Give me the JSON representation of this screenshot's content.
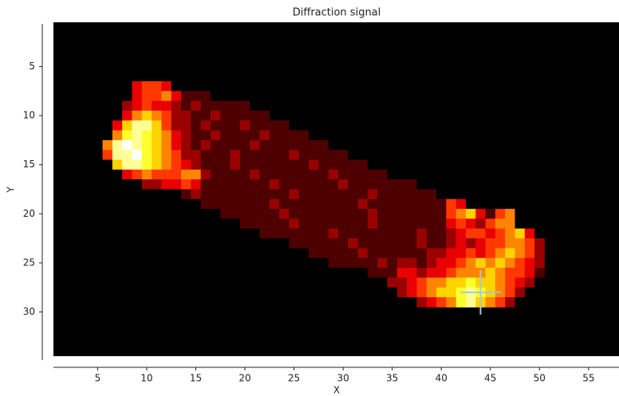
{
  "chart_data": {
    "type": "heatmap",
    "title": "Diffraction signal",
    "x_label": "X",
    "y_label": "Y",
    "colormap": "hot",
    "vmin": 0,
    "vmax": 9,
    "background": "#000000",
    "xlim": [
      0.5,
      58.1
    ],
    "ylim": [
      0.5,
      34.5
    ],
    "xticks": [
      5,
      10,
      15,
      20,
      25,
      30,
      35,
      40,
      45,
      50,
      55
    ],
    "yticks": [
      5,
      10,
      15,
      20,
      25,
      30
    ],
    "marker": {
      "x": 44,
      "y": 28,
      "color": "#9ecae1"
    },
    "x": [
      6,
      7,
      8,
      9,
      10,
      11,
      12,
      13,
      14,
      15,
      16,
      17,
      18,
      19,
      20,
      21,
      22,
      23,
      24,
      25,
      26,
      27,
      28,
      29,
      30,
      31,
      32,
      33,
      34,
      35,
      36,
      37,
      38,
      39,
      40,
      41,
      42,
      43,
      44,
      45,
      46,
      47,
      48,
      49,
      50
    ],
    "y": [
      7,
      8,
      9,
      10,
      11,
      12,
      13,
      14,
      15,
      16,
      17,
      18,
      19,
      20,
      21,
      22,
      23,
      24,
      25,
      26,
      27,
      28,
      29
    ],
    "z": [
      [
        0,
        0,
        0,
        3,
        4,
        4,
        3,
        0,
        0,
        0,
        0,
        0,
        0,
        0,
        0,
        0,
        0,
        0,
        0,
        0,
        0,
        0,
        0,
        0,
        0,
        0,
        0,
        0,
        0,
        0,
        0,
        0,
        0,
        0,
        0,
        0,
        0,
        0,
        0,
        0,
        0,
        0,
        0,
        0,
        0
      ],
      [
        0,
        0,
        0,
        3,
        4,
        4,
        5,
        3,
        1,
        1,
        1,
        0,
        0,
        0,
        0,
        0,
        0,
        0,
        0,
        0,
        0,
        0,
        0,
        0,
        0,
        0,
        0,
        0,
        0,
        0,
        0,
        0,
        0,
        0,
        0,
        0,
        0,
        0,
        0,
        0,
        0,
        0,
        0,
        0,
        0
      ],
      [
        0,
        0,
        2,
        3,
        4,
        3,
        3,
        2,
        1,
        2,
        1,
        1,
        1,
        1,
        1,
        0,
        0,
        0,
        0,
        0,
        0,
        0,
        0,
        0,
        0,
        0,
        0,
        0,
        0,
        0,
        0,
        0,
        0,
        0,
        0,
        0,
        0,
        0,
        0,
        0,
        0,
        0,
        0,
        0,
        0
      ],
      [
        0,
        0,
        3,
        5,
        6,
        5,
        4,
        2,
        2,
        1,
        1,
        2,
        1,
        1,
        1,
        1,
        1,
        0,
        0,
        0,
        0,
        0,
        0,
        0,
        0,
        0,
        0,
        0,
        0,
        0,
        0,
        0,
        0,
        0,
        0,
        0,
        0,
        0,
        0,
        0,
        0,
        0,
        0,
        0,
        0
      ],
      [
        0,
        3,
        6,
        8,
        8,
        6,
        4,
        2,
        2,
        1,
        2,
        1,
        1,
        1,
        2,
        1,
        1,
        1,
        1,
        0,
        0,
        0,
        0,
        0,
        0,
        0,
        0,
        0,
        0,
        0,
        0,
        0,
        0,
        0,
        0,
        0,
        0,
        0,
        0,
        0,
        0,
        0,
        0,
        0,
        0
      ],
      [
        0,
        5,
        7,
        8,
        7,
        6,
        5,
        3,
        2,
        1,
        1,
        2,
        1,
        1,
        1,
        1,
        2,
        1,
        1,
        1,
        1,
        0,
        0,
        0,
        0,
        0,
        0,
        0,
        0,
        0,
        0,
        0,
        0,
        0,
        0,
        0,
        0,
        0,
        0,
        0,
        0,
        0,
        0,
        0,
        0
      ],
      [
        5,
        8,
        9,
        8,
        7,
        6,
        5,
        3,
        2,
        1,
        2,
        1,
        1,
        1,
        1,
        2,
        1,
        1,
        1,
        1,
        1,
        1,
        1,
        0,
        0,
        0,
        0,
        0,
        0,
        0,
        0,
        0,
        0,
        0,
        0,
        0,
        0,
        0,
        0,
        0,
        0,
        0,
        0,
        0,
        0
      ],
      [
        4,
        8,
        8,
        9,
        7,
        6,
        5,
        4,
        2,
        2,
        1,
        1,
        1,
        2,
        1,
        1,
        1,
        1,
        1,
        2,
        1,
        1,
        1,
        1,
        1,
        0,
        0,
        0,
        0,
        0,
        0,
        0,
        0,
        0,
        0,
        0,
        0,
        0,
        0,
        0,
        0,
        0,
        0,
        0,
        0
      ],
      [
        0,
        6,
        8,
        8,
        7,
        6,
        5,
        4,
        3,
        2,
        1,
        1,
        1,
        2,
        1,
        1,
        1,
        1,
        1,
        1,
        1,
        2,
        1,
        1,
        1,
        1,
        1,
        0,
        0,
        0,
        0,
        0,
        0,
        0,
        0,
        0,
        0,
        0,
        0,
        0,
        0,
        0,
        0,
        0,
        0
      ],
      [
        0,
        0,
        3,
        4,
        5,
        4,
        4,
        4,
        5,
        5,
        2,
        1,
        1,
        1,
        1,
        2,
        1,
        1,
        1,
        1,
        1,
        1,
        1,
        2,
        1,
        1,
        1,
        1,
        1,
        0,
        0,
        0,
        0,
        0,
        0,
        0,
        0,
        0,
        0,
        0,
        0,
        0,
        0,
        0,
        0
      ],
      [
        0,
        0,
        0,
        0,
        2,
        2,
        3,
        3,
        4,
        3,
        1,
        1,
        1,
        1,
        1,
        1,
        1,
        2,
        1,
        1,
        1,
        1,
        1,
        1,
        2,
        1,
        1,
        1,
        1,
        1,
        1,
        1,
        0,
        0,
        0,
        0,
        0,
        0,
        0,
        0,
        0,
        0,
        0,
        0,
        0
      ],
      [
        0,
        0,
        0,
        0,
        0,
        0,
        0,
        0,
        1,
        2,
        1,
        1,
        1,
        1,
        1,
        1,
        1,
        1,
        1,
        2,
        1,
        1,
        1,
        1,
        1,
        1,
        1,
        2,
        1,
        1,
        1,
        1,
        1,
        1,
        0,
        0,
        0,
        0,
        0,
        0,
        0,
        0,
        0,
        0,
        0
      ],
      [
        0,
        0,
        0,
        0,
        0,
        0,
        0,
        0,
        0,
        0,
        1,
        1,
        1,
        1,
        1,
        1,
        1,
        2,
        1,
        1,
        1,
        1,
        1,
        1,
        1,
        1,
        2,
        1,
        1,
        1,
        1,
        1,
        1,
        1,
        1,
        4,
        3,
        0,
        0,
        0,
        0,
        0,
        0,
        0,
        0
      ],
      [
        0,
        0,
        0,
        0,
        0,
        0,
        0,
        0,
        0,
        0,
        0,
        0,
        1,
        1,
        1,
        1,
        1,
        1,
        2,
        1,
        1,
        1,
        1,
        1,
        1,
        1,
        1,
        2,
        1,
        1,
        1,
        1,
        1,
        1,
        1,
        4,
        5,
        6,
        3,
        1,
        4,
        5,
        0,
        0,
        0
      ],
      [
        0,
        0,
        0,
        0,
        0,
        0,
        0,
        0,
        0,
        0,
        0,
        0,
        0,
        0,
        1,
        1,
        1,
        1,
        1,
        2,
        1,
        1,
        1,
        1,
        1,
        1,
        1,
        2,
        1,
        1,
        1,
        1,
        1,
        1,
        1,
        3,
        4,
        3,
        2,
        4,
        5,
        5,
        0,
        0,
        0
      ],
      [
        0,
        0,
        0,
        0,
        0,
        0,
        0,
        0,
        0,
        0,
        0,
        0,
        0,
        0,
        0,
        0,
        1,
        1,
        1,
        1,
        1,
        1,
        1,
        2,
        1,
        1,
        1,
        1,
        1,
        1,
        1,
        1,
        2,
        1,
        1,
        2,
        3,
        4,
        4,
        3,
        4,
        5,
        6,
        3,
        0
      ],
      [
        0,
        0,
        0,
        0,
        0,
        0,
        0,
        0,
        0,
        0,
        0,
        0,
        0,
        0,
        0,
        0,
        0,
        0,
        0,
        1,
        1,
        1,
        1,
        1,
        1,
        2,
        1,
        1,
        1,
        1,
        1,
        1,
        2,
        1,
        1,
        2,
        3,
        2,
        3,
        4,
        4,
        5,
        5,
        4,
        2
      ],
      [
        0,
        0,
        0,
        0,
        0,
        0,
        0,
        0,
        0,
        0,
        0,
        0,
        0,
        0,
        0,
        0,
        0,
        0,
        0,
        0,
        0,
        1,
        1,
        1,
        1,
        1,
        2,
        1,
        1,
        1,
        1,
        1,
        1,
        2,
        2,
        3,
        3,
        4,
        3,
        4,
        5,
        6,
        5,
        4,
        2
      ],
      [
        0,
        0,
        0,
        0,
        0,
        0,
        0,
        0,
        0,
        0,
        0,
        0,
        0,
        0,
        0,
        0,
        0,
        0,
        0,
        0,
        0,
        0,
        0,
        1,
        1,
        1,
        1,
        1,
        2,
        1,
        2,
        2,
        1,
        2,
        3,
        3,
        4,
        5,
        6,
        5,
        6,
        5,
        4,
        3,
        2
      ],
      [
        0,
        0,
        0,
        0,
        0,
        0,
        0,
        0,
        0,
        0,
        0,
        0,
        0,
        0,
        0,
        0,
        0,
        0,
        0,
        0,
        0,
        0,
        0,
        0,
        0,
        0,
        0,
        1,
        1,
        1,
        3,
        3,
        2,
        3,
        3,
        4,
        5,
        5,
        5,
        6,
        5,
        4,
        4,
        3,
        1
      ],
      [
        0,
        0,
        0,
        0,
        0,
        0,
        0,
        0,
        0,
        0,
        0,
        0,
        0,
        0,
        0,
        0,
        0,
        0,
        0,
        0,
        0,
        0,
        0,
        0,
        0,
        0,
        0,
        0,
        0,
        2,
        2,
        3,
        4,
        5,
        5,
        6,
        6,
        7,
        6,
        6,
        5,
        4,
        3,
        2,
        0
      ],
      [
        0,
        0,
        0,
        0,
        0,
        0,
        0,
        0,
        0,
        0,
        0,
        0,
        0,
        0,
        0,
        0,
        0,
        0,
        0,
        0,
        0,
        0,
        0,
        0,
        0,
        0,
        0,
        0,
        0,
        0,
        2,
        3,
        4,
        5,
        6,
        6,
        7,
        8,
        7,
        6,
        5,
        4,
        2,
        0,
        0
      ],
      [
        0,
        0,
        0,
        0,
        0,
        0,
        0,
        0,
        0,
        0,
        0,
        0,
        0,
        0,
        0,
        0,
        0,
        0,
        0,
        0,
        0,
        0,
        0,
        0,
        0,
        0,
        0,
        0,
        0,
        0,
        0,
        0,
        2,
        3,
        4,
        5,
        7,
        8,
        6,
        5,
        4,
        2,
        0,
        0,
        0
      ]
    ]
  }
}
